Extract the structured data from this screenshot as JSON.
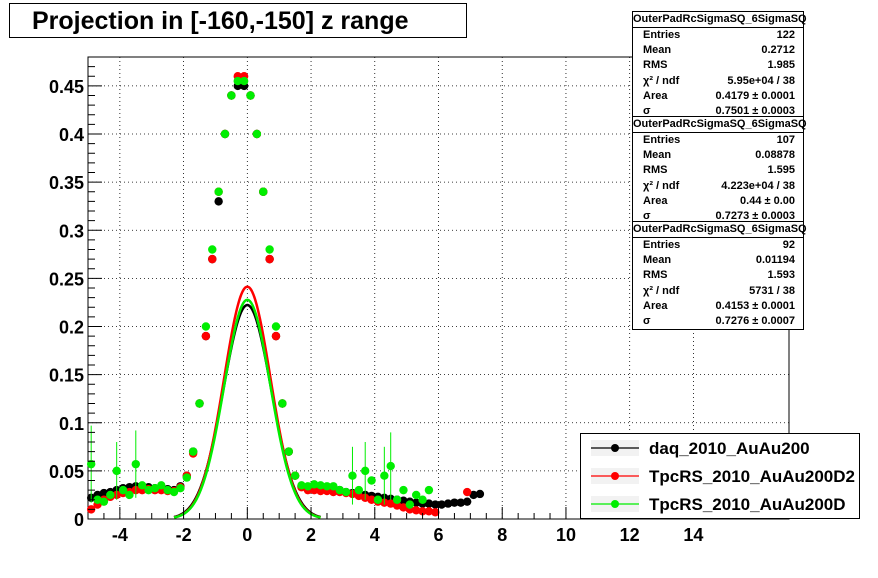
{
  "title": "Projection in [-160,-150] z range",
  "stats_boxes": [
    {
      "name": "OuterPadRcSigmaSQ_6SigmaSQ",
      "rows": [
        {
          "key": "Entries",
          "value": "122"
        },
        {
          "key": "Mean",
          "value": "0.2712"
        },
        {
          "key": "RMS",
          "value": "1.985"
        },
        {
          "key": "χ² / ndf",
          "value": "5.95e+04 / 38"
        },
        {
          "key": "Area",
          "value": "0.4179 ± 0.0001"
        },
        {
          "key": "σ",
          "value": "0.7501 ± 0.0003"
        }
      ]
    },
    {
      "name": "OuterPadRcSigmaSQ_6SigmaSQ",
      "rows": [
        {
          "key": "Entries",
          "value": "107"
        },
        {
          "key": "Mean",
          "value": "0.08878"
        },
        {
          "key": "RMS",
          "value": "1.595"
        },
        {
          "key": "χ² / ndf",
          "value": "4.223e+04 / 38"
        },
        {
          "key": "Area",
          "value": "0.44 ± 0.00"
        },
        {
          "key": "σ",
          "value": "0.7273 ± 0.0003"
        }
      ]
    },
    {
      "name": "OuterPadRcSigmaSQ_6SigmaSQ",
      "rows": [
        {
          "key": "Entries",
          "value": "92"
        },
        {
          "key": "Mean",
          "value": "0.01194"
        },
        {
          "key": "RMS",
          "value": "1.593"
        },
        {
          "key": "χ² / ndf",
          "value": "5731 / 38"
        },
        {
          "key": "Area",
          "value": "0.4153 ± 0.0001"
        },
        {
          "key": "σ",
          "value": "0.7276 ± 0.0007"
        }
      ]
    }
  ],
  "legend": [
    {
      "label": "daq_2010_AuAu200",
      "color": "#000000"
    },
    {
      "label": "TpcRS_2010_AuAu200D2",
      "color": "#ff0000"
    },
    {
      "label": "TpcRS_2010_AuAu200D",
      "color": "#00ee00"
    }
  ],
  "chart_data": {
    "type": "scatter",
    "title": "Projection in [-160,-150] z range",
    "xlabel": "",
    "ylabel": "",
    "xlim": [
      -5,
      17
    ],
    "ylim": [
      0,
      0.48
    ],
    "x_ticks": [
      -4,
      -2,
      0,
      2,
      4,
      6,
      8,
      10,
      12,
      14
    ],
    "x_tick_labels": [
      "-4",
      "-2",
      "0",
      "2",
      "4",
      "6",
      "8",
      "10",
      "12",
      "14"
    ],
    "y_ticks": [
      0,
      0.05,
      0.1,
      0.15,
      0.2,
      0.25,
      0.3,
      0.35,
      0.4,
      0.45
    ],
    "y_tick_labels": [
      "0",
      "0.05",
      "0.1",
      "0.15",
      "0.2",
      "0.25",
      "0.3",
      "0.35",
      "0.4",
      "0.45"
    ],
    "grid": true,
    "legend_position": "bottom-right",
    "series": [
      {
        "name": "daq_2010_AuAu200",
        "color": "#000000",
        "x": [
          -4.9,
          -4.7,
          -4.5,
          -4.3,
          -4.1,
          -3.9,
          -3.7,
          -3.5,
          -3.3,
          -3.1,
          -2.9,
          -2.7,
          -2.5,
          -2.3,
          -2.1,
          -1.9,
          -1.7,
          -1.5,
          -1.3,
          -1.1,
          -0.9,
          -0.7,
          -0.5,
          -0.3,
          -0.1,
          0.1,
          0.3,
          0.5,
          0.7,
          0.9,
          1.1,
          1.3,
          1.5,
          1.7,
          1.9,
          2.1,
          2.3,
          2.5,
          2.7,
          2.9,
          3.1,
          3.3,
          3.5,
          3.7,
          3.9,
          4.1,
          4.3,
          4.5,
          4.7,
          4.9,
          5.1,
          5.3,
          5.5,
          5.7,
          5.9,
          6.1,
          6.3,
          6.5,
          6.7,
          6.9,
          7.1,
          7.3
        ],
        "y": [
          0.022,
          0.025,
          0.027,
          0.028,
          0.03,
          0.032,
          0.033,
          0.034,
          0.034,
          0.033,
          0.032,
          0.031,
          0.031,
          0.03,
          0.034,
          0.045,
          0.07,
          0.12,
          0.19,
          0.27,
          0.33,
          0.4,
          0.44,
          0.45,
          0.45,
          0.44,
          0.4,
          0.34,
          0.27,
          0.19,
          0.12,
          0.07,
          0.045,
          0.034,
          0.033,
          0.033,
          0.033,
          0.032,
          0.031,
          0.03,
          0.028,
          0.027,
          0.026,
          0.025,
          0.024,
          0.023,
          0.022,
          0.021,
          0.02,
          0.019,
          0.018,
          0.017,
          0.016,
          0.016,
          0.015,
          0.015,
          0.016,
          0.017,
          0.017,
          0.018,
          0.025,
          0.026
        ]
      },
      {
        "name": "TpcRS_2010_AuAu200D2",
        "color": "#ff0000",
        "x": [
          -4.9,
          -4.7,
          -4.5,
          -4.3,
          -4.1,
          -3.9,
          -3.7,
          -3.5,
          -3.3,
          -3.1,
          -2.9,
          -2.7,
          -2.5,
          -2.3,
          -2.1,
          -1.9,
          -1.7,
          -1.5,
          -1.3,
          -1.1,
          -0.9,
          -0.7,
          -0.5,
          -0.3,
          -0.1,
          0.1,
          0.3,
          0.5,
          0.7,
          0.9,
          1.1,
          1.3,
          1.5,
          1.7,
          1.9,
          2.1,
          2.3,
          2.5,
          2.7,
          2.9,
          3.1,
          3.3,
          3.5,
          3.7,
          3.9,
          4.1,
          4.3,
          4.5,
          4.7,
          4.9,
          5.1,
          5.3,
          5.5,
          5.7,
          5.9,
          6.9
        ],
        "y": [
          0.01,
          0.015,
          0.02,
          0.023,
          0.025,
          0.027,
          0.028,
          0.03,
          0.03,
          0.031,
          0.03,
          0.03,
          0.029,
          0.029,
          0.033,
          0.045,
          0.068,
          0.12,
          0.19,
          0.27,
          0.34,
          0.4,
          0.44,
          0.46,
          0.46,
          0.44,
          0.4,
          0.34,
          0.27,
          0.19,
          0.12,
          0.07,
          0.045,
          0.033,
          0.03,
          0.03,
          0.029,
          0.029,
          0.028,
          0.028,
          0.027,
          0.026,
          0.024,
          0.022,
          0.02,
          0.018,
          0.017,
          0.016,
          0.014,
          0.012,
          0.01,
          0.009,
          0.008,
          0.008,
          0.007,
          0.028
        ]
      },
      {
        "name": "TpcRS_2010_AuAu200D",
        "color": "#00ee00",
        "x": [
          -4.9,
          -4.7,
          -4.5,
          -4.3,
          -4.1,
          -3.9,
          -3.7,
          -3.5,
          -3.3,
          -3.1,
          -2.9,
          -2.7,
          -2.5,
          -2.3,
          -2.1,
          -1.9,
          -1.7,
          -1.5,
          -1.3,
          -1.1,
          -0.9,
          -0.7,
          -0.5,
          -0.3,
          -0.1,
          0.1,
          0.3,
          0.5,
          0.7,
          0.9,
          1.1,
          1.3,
          1.5,
          1.7,
          1.9,
          2.1,
          2.3,
          2.5,
          2.7,
          2.9,
          3.1,
          3.3,
          3.5,
          3.7,
          3.9,
          4.1,
          4.3,
          4.5,
          4.7,
          4.9,
          5.1,
          5.3,
          5.5,
          5.7
        ],
        "y": [
          0.057,
          0.02,
          0.018,
          0.025,
          0.05,
          0.03,
          0.025,
          0.057,
          0.035,
          0.03,
          0.032,
          0.035,
          0.03,
          0.028,
          0.032,
          0.043,
          0.07,
          0.12,
          0.2,
          0.28,
          0.34,
          0.4,
          0.44,
          0.455,
          0.455,
          0.44,
          0.4,
          0.34,
          0.28,
          0.2,
          0.12,
          0.07,
          0.045,
          0.035,
          0.034,
          0.036,
          0.035,
          0.034,
          0.034,
          0.03,
          0.028,
          0.045,
          0.03,
          0.05,
          0.04,
          0.02,
          0.045,
          0.055,
          0.02,
          0.03,
          0.015,
          0.025,
          0.02,
          0.03
        ],
        "err": [
          0.04,
          0.0,
          0.0,
          0.0,
          0.03,
          0.0,
          0.0,
          0.035,
          0.0,
          0.0,
          0.0,
          0.0,
          0.0,
          0.0,
          0.0,
          0.0,
          0.0,
          0.0,
          0.0,
          0.0,
          0.0,
          0.0,
          0.0,
          0.0,
          0.0,
          0.0,
          0.0,
          0.0,
          0.0,
          0.0,
          0.0,
          0.0,
          0.0,
          0.0,
          0.0,
          0.0,
          0.0,
          0.0,
          0.0,
          0.0,
          0.0,
          0.03,
          0.0,
          0.03,
          0.0,
          0.0,
          0.03,
          0.035,
          0.0,
          0.0,
          0.0,
          0.0,
          0.0,
          0.0
        ]
      }
    ],
    "fits": [
      {
        "name": "daq_2010_AuAu200",
        "color": "#000000",
        "area": 0.4179,
        "sigma": 0.7501
      },
      {
        "name": "TpcRS_2010_AuAu200D2",
        "color": "#ff0000",
        "area": 0.44,
        "sigma": 0.7273
      },
      {
        "name": "TpcRS_2010_AuAu200D",
        "color": "#00ee00",
        "area": 0.4153,
        "sigma": 0.7276
      }
    ]
  }
}
